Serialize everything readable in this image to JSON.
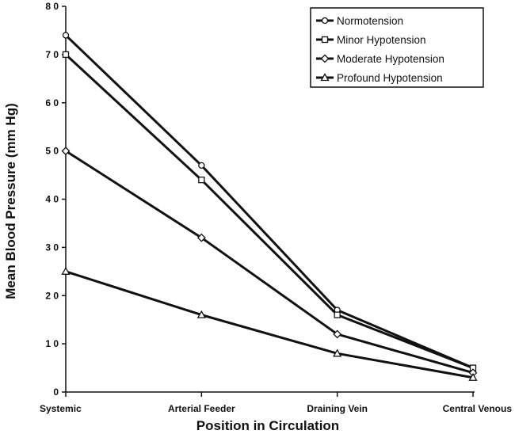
{
  "chart_data": {
    "type": "line",
    "title": "",
    "xlabel": "Position in Circulation",
    "ylabel": "Mean Blood Pressure (mm Hg)",
    "categories": [
      "Systemic",
      "Arterial Feeder",
      "Draining Vein",
      "Central Venous"
    ],
    "ylim": [
      0,
      80
    ],
    "yticks": [
      0,
      10,
      20,
      30,
      40,
      50,
      60,
      70,
      80
    ],
    "ytick_labels": [
      "0",
      "1 0",
      "2 0",
      "3 0",
      "4 0",
      "5 0",
      "6 0",
      "7 0",
      "8 0"
    ],
    "grid": false,
    "legend_position": "top-right",
    "series": [
      {
        "name": "Normotension",
        "marker": "circle",
        "values": [
          74,
          47,
          17,
          5
        ]
      },
      {
        "name": "Minor Hypotension",
        "marker": "square",
        "values": [
          70,
          44,
          16,
          5
        ]
      },
      {
        "name": "Moderate Hypotension",
        "marker": "diamond",
        "values": [
          50,
          32,
          12,
          4
        ]
      },
      {
        "name": "Profound Hypotension",
        "marker": "triangle",
        "values": [
          25,
          16,
          8,
          3
        ]
      }
    ],
    "line_color": "#111111"
  }
}
